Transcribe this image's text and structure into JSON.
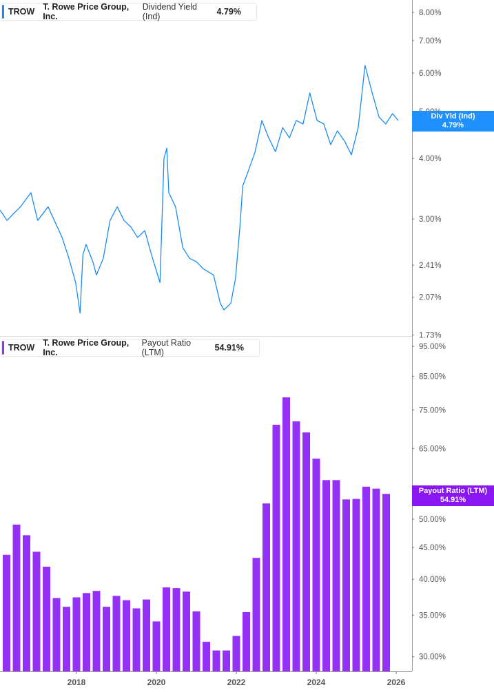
{
  "colors": {
    "yield": "#1a8cf5",
    "payout": "#9531f7",
    "yield_tag": "#1e90ff",
    "payout_tag": "#8a17f2",
    "axis": "#999999",
    "tick_text": "#555555"
  },
  "top_legend": {
    "ticker": "TROW",
    "company": "T. Rowe Price Group, Inc.",
    "metric": "Dividend Yield (Ind)",
    "value": "4.79%"
  },
  "bottom_legend": {
    "ticker": "TROW",
    "company": "T. Rowe Price Group, Inc.",
    "metric": "Payout Ratio (LTM)",
    "value": "54.91%"
  },
  "top_tag": {
    "label": "Div Yld (Ind)",
    "value": "4.79%"
  },
  "bottom_tag": {
    "label": "Payout Ratio (LTM)",
    "value": "54.91%"
  },
  "chart_data": [
    {
      "type": "line",
      "scale": "log",
      "ylim": [
        1.73,
        8.4
      ],
      "xlim": [
        2016.09,
        2026.4
      ],
      "yticks": [
        {
          "v": 8,
          "label": "8.00%"
        },
        {
          "v": 7,
          "label": "7.00%"
        },
        {
          "v": 6,
          "label": "6.00%"
        },
        {
          "v": 5,
          "label": "5.00%"
        },
        {
          "v": 4,
          "label": "4.00%"
        },
        {
          "v": 3,
          "label": "3.00%"
        },
        {
          "v": 2.41,
          "label": "2.41%"
        },
        {
          "v": 2.07,
          "label": "2.07%"
        },
        {
          "v": 1.73,
          "label": "1.73%"
        }
      ],
      "series": [
        {
          "name": "Dividend Yield (Ind)",
          "points": [
            [
              2016.09,
              3.13
            ],
            [
              2016.26,
              2.98
            ],
            [
              2016.43,
              3.08
            ],
            [
              2016.6,
              3.18
            ],
            [
              2016.86,
              3.4
            ],
            [
              2017.03,
              2.98
            ],
            [
              2017.29,
              3.18
            ],
            [
              2017.64,
              2.75
            ],
            [
              2017.81,
              2.49
            ],
            [
              2017.98,
              2.22
            ],
            [
              2018.09,
              1.92
            ],
            [
              2018.16,
              2.53
            ],
            [
              2018.24,
              2.66
            ],
            [
              2018.41,
              2.45
            ],
            [
              2018.5,
              2.3
            ],
            [
              2018.67,
              2.49
            ],
            [
              2018.84,
              2.98
            ],
            [
              2019.02,
              3.18
            ],
            [
              2019.19,
              2.98
            ],
            [
              2019.36,
              2.89
            ],
            [
              2019.53,
              2.75
            ],
            [
              2019.71,
              2.84
            ],
            [
              2019.88,
              2.53
            ],
            [
              2020.09,
              2.22
            ],
            [
              2020.19,
              4.0
            ],
            [
              2020.26,
              4.2
            ],
            [
              2020.31,
              3.4
            ],
            [
              2020.48,
              3.18
            ],
            [
              2020.66,
              2.62
            ],
            [
              2020.83,
              2.49
            ],
            [
              2021.0,
              2.45
            ],
            [
              2021.17,
              2.37
            ],
            [
              2021.43,
              2.3
            ],
            [
              2021.6,
              2.01
            ],
            [
              2021.69,
              1.95
            ],
            [
              2021.86,
              2.01
            ],
            [
              2021.98,
              2.26
            ],
            [
              2022.09,
              2.89
            ],
            [
              2022.16,
              3.51
            ],
            [
              2022.29,
              3.75
            ],
            [
              2022.47,
              4.13
            ],
            [
              2022.64,
              4.79
            ],
            [
              2022.81,
              4.41
            ],
            [
              2022.98,
              4.13
            ],
            [
              2023.16,
              4.63
            ],
            [
              2023.33,
              4.41
            ],
            [
              2023.5,
              4.79
            ],
            [
              2023.67,
              4.71
            ],
            [
              2023.84,
              5.46
            ],
            [
              2024.02,
              4.79
            ],
            [
              2024.19,
              4.71
            ],
            [
              2024.36,
              4.27
            ],
            [
              2024.53,
              4.56
            ],
            [
              2024.71,
              4.34
            ],
            [
              2024.88,
              4.07
            ],
            [
              2025.05,
              4.63
            ],
            [
              2025.22,
              6.22
            ],
            [
              2025.4,
              5.46
            ],
            [
              2025.57,
              4.87
            ],
            [
              2025.74,
              4.71
            ],
            [
              2025.91,
              4.95
            ],
            [
              2026.05,
              4.79
            ]
          ]
        }
      ]
    },
    {
      "type": "bar",
      "scale": "log",
      "ylim": [
        29.0,
        97.0
      ],
      "xlim": [
        2016.09,
        2026.4
      ],
      "yticks": [
        {
          "v": 95,
          "label": "95.00%"
        },
        {
          "v": 85,
          "label": "85.00%"
        },
        {
          "v": 75,
          "label": "75.00%"
        },
        {
          "v": 65,
          "label": "65.00%"
        },
        {
          "v": 50,
          "label": "50.00%"
        },
        {
          "v": 45,
          "label": "45.00%"
        },
        {
          "v": 40,
          "label": "40.00%"
        },
        {
          "v": 35,
          "label": "35.00%"
        },
        {
          "v": 30,
          "label": "30.00%"
        }
      ],
      "xticks": [
        {
          "v": 2018,
          "label": "2018"
        },
        {
          "v": 2020,
          "label": "2020"
        },
        {
          "v": 2022,
          "label": "2022"
        },
        {
          "v": 2024,
          "label": "2024"
        },
        {
          "v": 2026,
          "label": "2026"
        }
      ],
      "series": [
        {
          "name": "Payout Ratio (LTM)",
          "x_start": 2016.25,
          "x_step": 0.25,
          "values": [
            43.8,
            49.0,
            47.1,
            44.3,
            41.9,
            37.3,
            36.1,
            37.4,
            38.0,
            38.3,
            36.1,
            37.6,
            37.0,
            35.9,
            37.1,
            34.2,
            38.8,
            38.7,
            38.2,
            35.5,
            31.7,
            30.7,
            30.7,
            32.4,
            35.4,
            43.3,
            53.0,
            71.0,
            78.6,
            71.9,
            69.0,
            62.6,
            57.8,
            57.8,
            53.8,
            53.9,
            56.4,
            56.0,
            54.91
          ]
        }
      ]
    }
  ]
}
